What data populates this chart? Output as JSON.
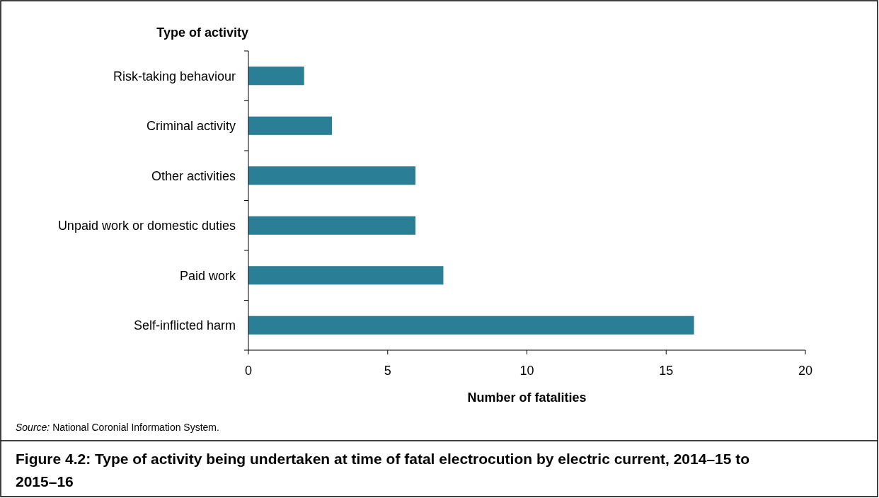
{
  "chart_data": {
    "type": "bar",
    "orientation": "horizontal",
    "title": "Figure 4.2: Type of activity being undertaken at time of fatal electrocution by electric current, 2014–15 to 2015–16",
    "ylabel": "Type of activity",
    "xlabel": "Number of fatalities",
    "categories": [
      "Risk-taking behaviour",
      "Criminal activity",
      "Other activities",
      "Unpaid work or domestic duties",
      "Paid work",
      "Self-inflicted harm"
    ],
    "values": [
      2,
      3,
      6,
      6,
      7,
      16
    ],
    "color": "#2a7e96",
    "xlim": [
      0,
      20
    ],
    "xticks": [
      0,
      5,
      10,
      15,
      20
    ],
    "annotations": [
      "Source: National Coronial Information System."
    ]
  }
}
